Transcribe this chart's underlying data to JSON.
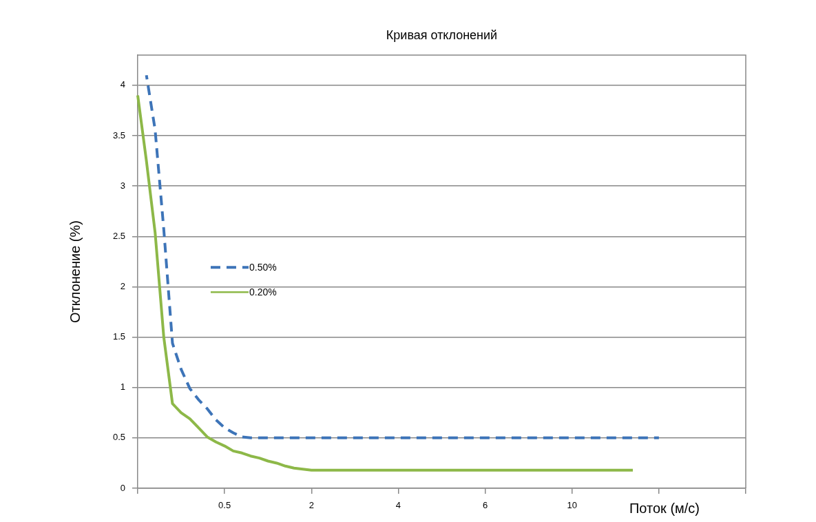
{
  "chart_data": {
    "type": "line",
    "title": "Кривая отклонений",
    "xlabel": "Поток (м/с)",
    "ylabel": "Отклонение (%)",
    "categories": [
      null,
      null,
      null,
      null,
      null,
      null,
      null,
      null,
      null,
      null,
      "0.5",
      null,
      null,
      null,
      null,
      null,
      null,
      null,
      null,
      null,
      "2",
      null,
      null,
      null,
      null,
      null,
      null,
      null,
      null,
      null,
      "4",
      null,
      null,
      null,
      null,
      null,
      null,
      null,
      null,
      null,
      "6",
      null,
      null,
      null,
      null,
      null,
      null,
      null,
      null,
      null,
      "10",
      null,
      null,
      null,
      null,
      null,
      null,
      null,
      null,
      null,
      null,
      null,
      null,
      null,
      null,
      null,
      null,
      null,
      null,
      null,
      null
    ],
    "ylim": [
      0,
      4.3
    ],
    "yticks": [
      0,
      0.5,
      1,
      1.5,
      2,
      2.5,
      3,
      3.5,
      4
    ],
    "grid": "y",
    "legend": "center left",
    "marker": "none",
    "series": [
      {
        "name": "0.50%",
        "color": "#3d74b8",
        "line_style": "dashed",
        "values": [
          null,
          4.1,
          3.56,
          2.57,
          1.44,
          1.18,
          0.99,
          0.88,
          0.79,
          0.68,
          0.6,
          0.55,
          0.51,
          0.5,
          0.5,
          0.5,
          0.5,
          0.5,
          0.5,
          0.5,
          0.5,
          0.5,
          0.5,
          0.5,
          0.5,
          0.5,
          0.5,
          0.5,
          0.5,
          0.5,
          0.5,
          0.5,
          0.5,
          0.5,
          0.5,
          0.5,
          0.5,
          0.5,
          0.5,
          0.5,
          0.5,
          0.5,
          0.5,
          0.5,
          0.5,
          0.5,
          0.5,
          0.5,
          0.5,
          0.5,
          0.5,
          0.5,
          0.5,
          0.5,
          0.5,
          0.5,
          0.5,
          0.5,
          0.5,
          0.5,
          0.5,
          null,
          null,
          null,
          null,
          null,
          null,
          null,
          null,
          null,
          null
        ]
      },
      {
        "name": "0.20%",
        "color": "#8db848",
        "line_style": "solid",
        "values": [
          3.9,
          3.25,
          2.54,
          1.5,
          0.84,
          0.75,
          0.69,
          0.6,
          0.51,
          0.46,
          0.42,
          0.37,
          0.35,
          0.32,
          0.3,
          0.27,
          0.25,
          0.22,
          0.2,
          0.19,
          0.18,
          0.18,
          0.18,
          0.18,
          0.18,
          0.18,
          0.18,
          0.18,
          0.18,
          0.18,
          0.18,
          0.18,
          0.18,
          0.18,
          0.18,
          0.18,
          0.18,
          0.18,
          0.18,
          0.18,
          0.18,
          0.18,
          0.18,
          0.18,
          0.18,
          0.18,
          0.18,
          0.18,
          0.18,
          0.18,
          0.18,
          0.18,
          0.18,
          0.18,
          0.18,
          0.18,
          0.18,
          0.18,
          null,
          null,
          null,
          null,
          null,
          null,
          null,
          null,
          null,
          null,
          null,
          null,
          null
        ]
      }
    ]
  }
}
